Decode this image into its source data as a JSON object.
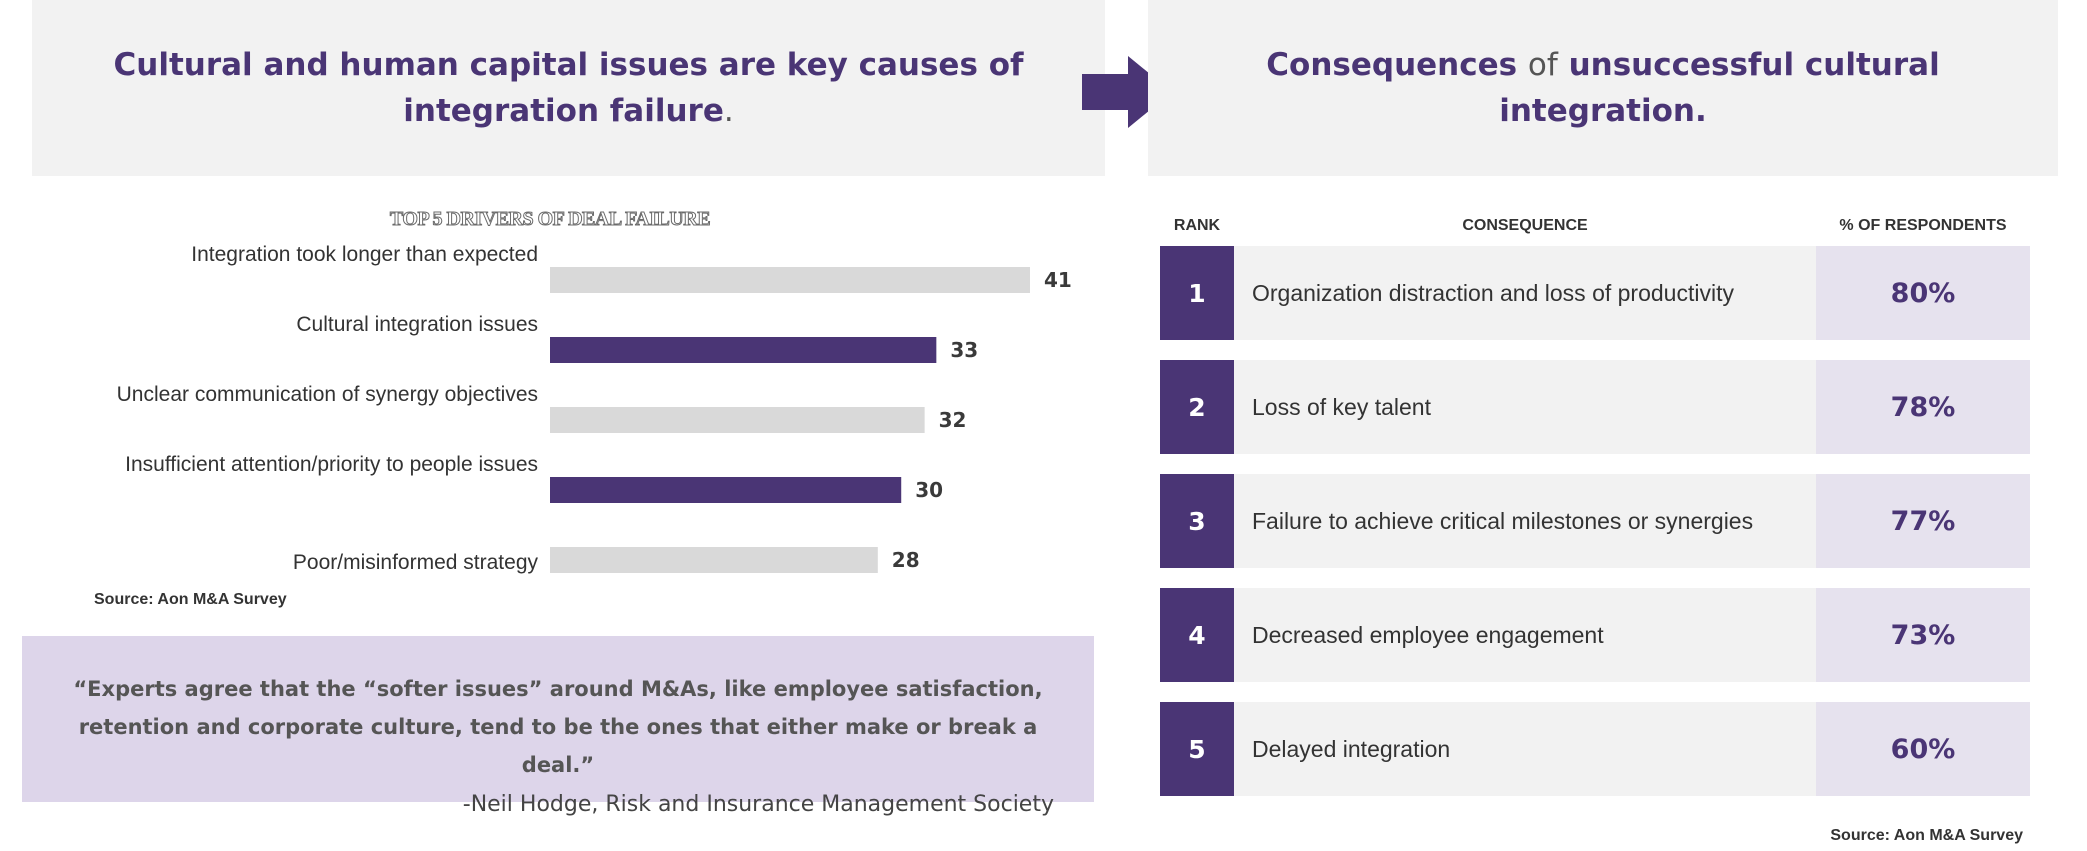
{
  "left_header": {
    "main": "Cultural and human capital issues are key causes of integration failure",
    "end": "."
  },
  "right_header": {
    "part1": "Consequences",
    "part2": "of",
    "part3": "unsuccessful cultural integration."
  },
  "chart_data": {
    "type": "bar",
    "orientation": "horizontal",
    "title": "TOP 5 DRIVERS OF DEAL FAILURE",
    "categories": [
      "Integration took longer than expected",
      "Cultural integration issues",
      "Unclear communication of synergy objectives",
      "Insufficient attention/priority to people issues",
      "Poor/misinformed strategy"
    ],
    "values": [
      41,
      33,
      32,
      30,
      28
    ],
    "bar_colors": [
      "#d9d9d9",
      "#4a3575",
      "#d9d9d9",
      "#4a3575",
      "#d9d9d9"
    ],
    "xlim": [
      0,
      41
    ],
    "grid": false,
    "data_labels": true
  },
  "left_source": "Source: Aon M&A Survey",
  "quote": {
    "text": "“Experts agree that the “softer issues” around M&As, like employee satisfaction, retention and corporate culture, tend to be the ones that either make or break a deal.”",
    "attribution": "-Neil Hodge, Risk and Insurance Management Society"
  },
  "table": {
    "headers": {
      "rank": "RANK",
      "consequence": "CONSEQUENCE",
      "pct": "% OF RESPONDENTS"
    },
    "rows": [
      {
        "rank": "1",
        "consequence": "Organization distraction and loss of productivity",
        "pct": "80%"
      },
      {
        "rank": "2",
        "consequence": "Loss of key talent",
        "pct": "78%"
      },
      {
        "rank": "3",
        "consequence": "Failure to achieve critical milestones or synergies",
        "pct": "77%"
      },
      {
        "rank": "4",
        "consequence": "Decreased employee engagement",
        "pct": "73%"
      },
      {
        "rank": "5",
        "consequence": "Delayed integration",
        "pct": "60%"
      }
    ]
  },
  "right_source": "Source: Aon M&A Survey",
  "colors": {
    "accent": "#4a3575",
    "bar_gray": "#d9d9d9",
    "panel_bg": "#f2f2f2",
    "quote_bg": "#ddd5ea"
  }
}
